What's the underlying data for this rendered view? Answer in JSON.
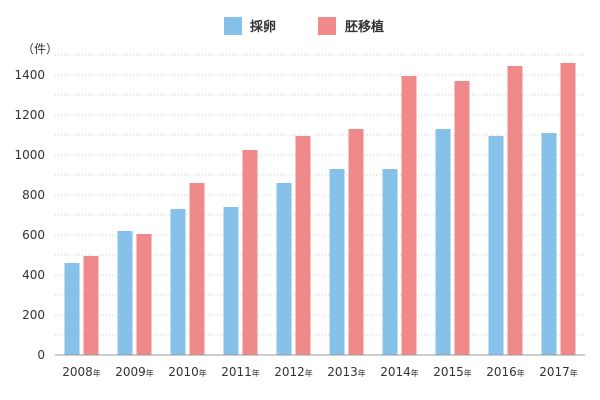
{
  "chart_data": {
    "type": "bar",
    "categories": [
      "2008年",
      "2009年",
      "2010年",
      "2011年",
      "2012年",
      "2013年",
      "2014年",
      "2015年",
      "2016年",
      "2017年"
    ],
    "category_years": [
      "2008",
      "2009",
      "2010",
      "2011",
      "2012",
      "2013",
      "2014",
      "2015",
      "2016",
      "2017"
    ],
    "category_suffix": "年",
    "series": [
      {
        "name": "採卵",
        "values": [
          460,
          620,
          730,
          740,
          860,
          930,
          930,
          1130,
          1095,
          1110
        ],
        "color": "#85c1e9"
      },
      {
        "name": "胚移植",
        "values": [
          495,
          605,
          860,
          1025,
          1095,
          1130,
          1395,
          1370,
          1445,
          1460
        ],
        "color": "#f08a8a"
      }
    ],
    "y_unit": "（件）",
    "ylim": [
      0,
      1500
    ],
    "yticks": [
      0,
      200,
      400,
      600,
      800,
      1000,
      1200,
      1400
    ],
    "grid": true,
    "legend": "top-center"
  }
}
